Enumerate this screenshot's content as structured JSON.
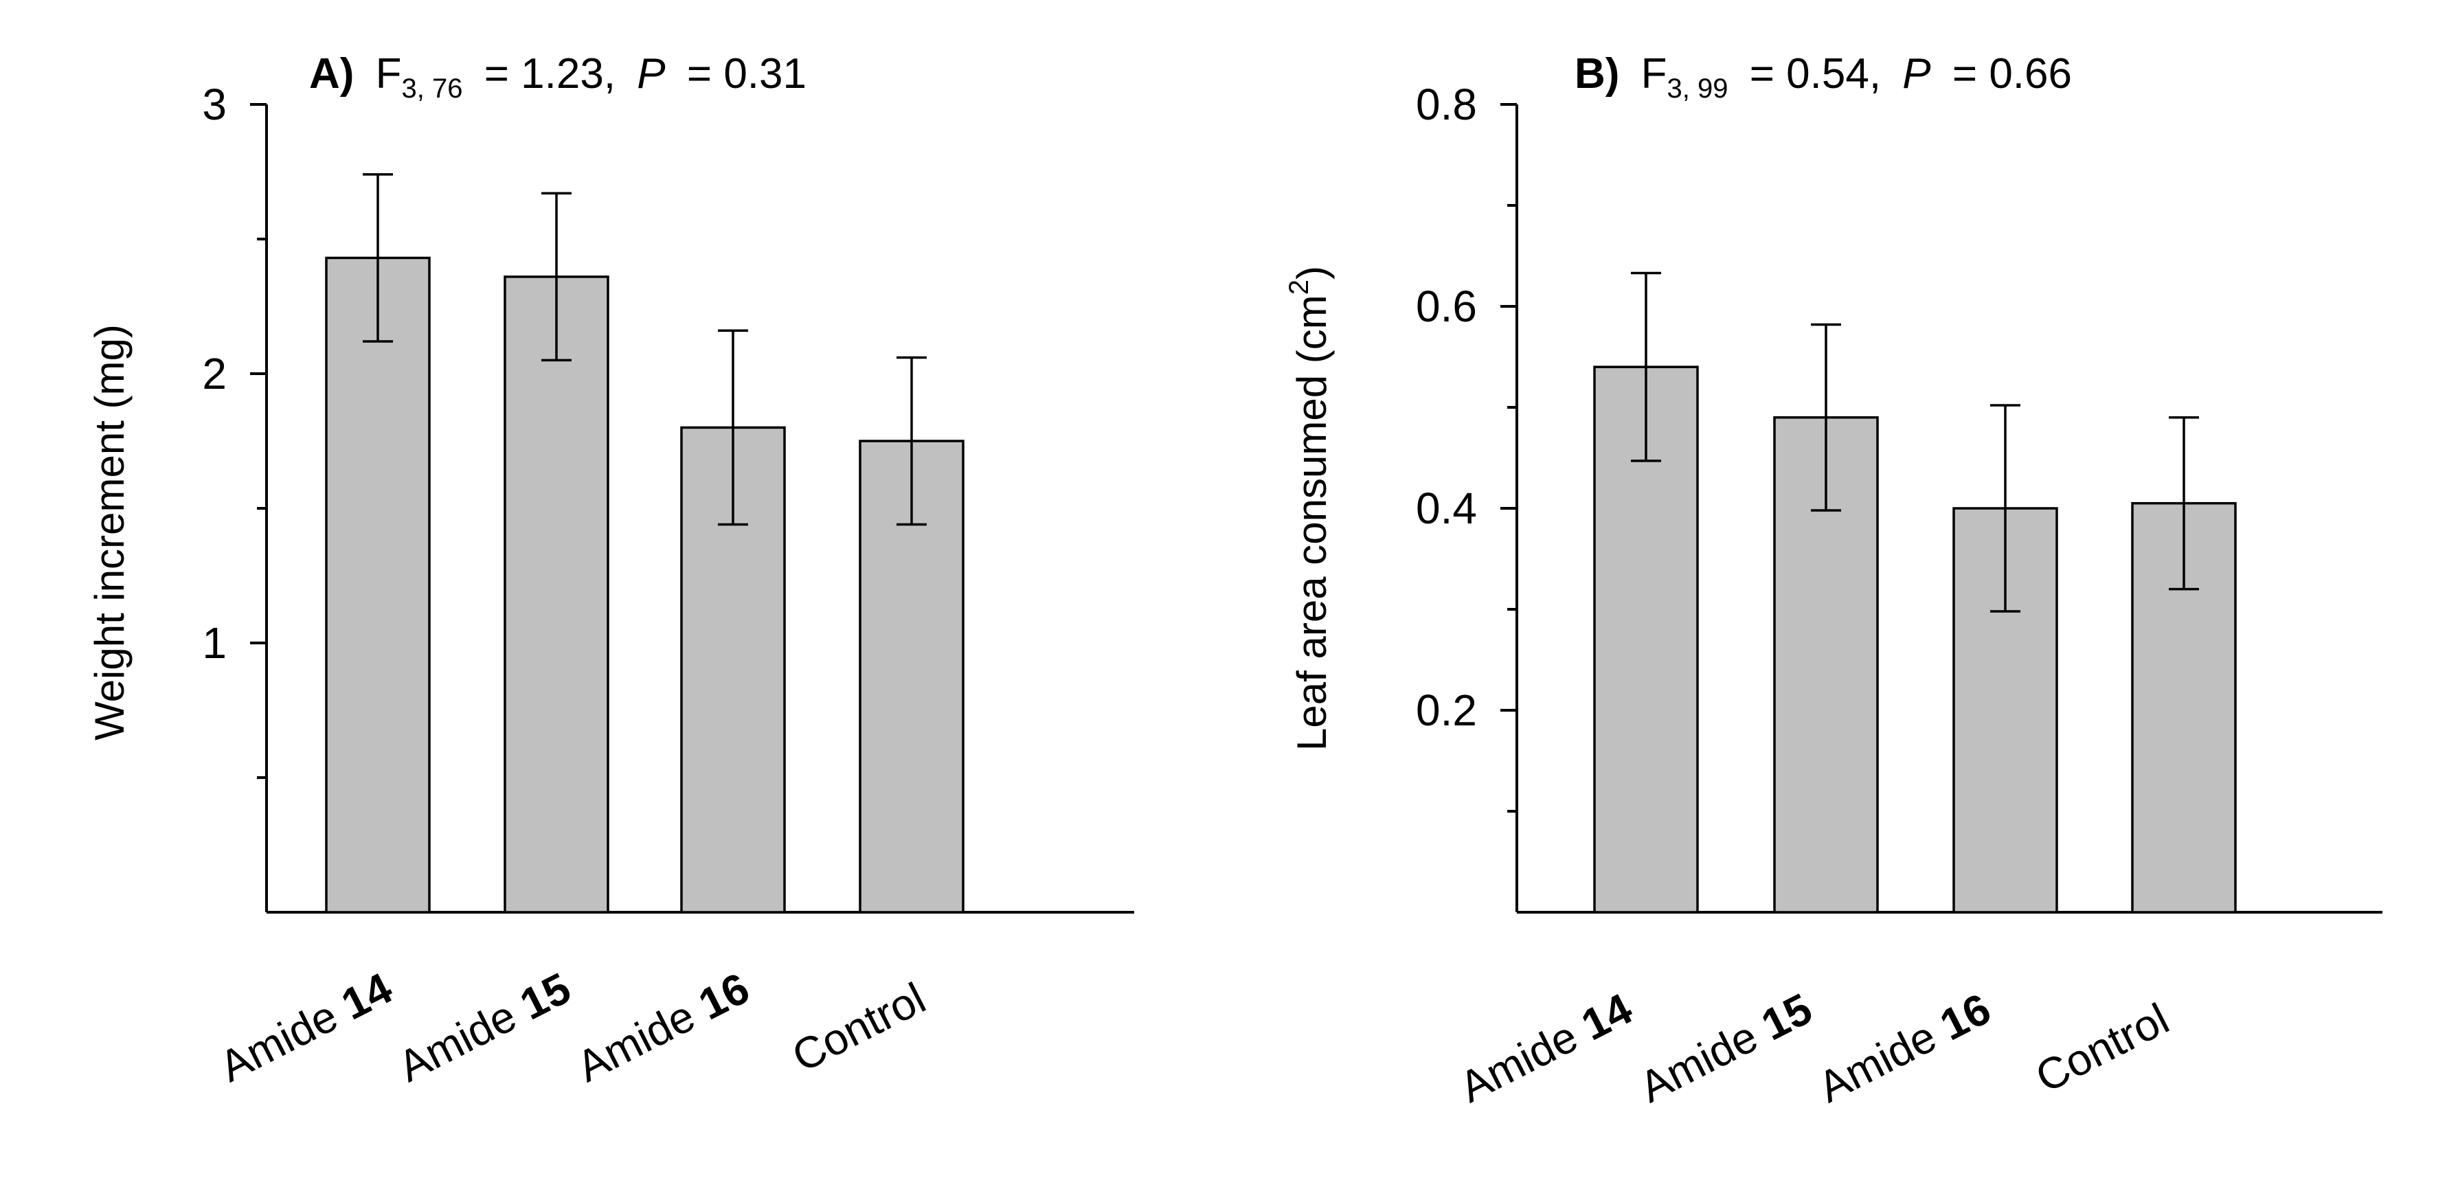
{
  "chart_data": [
    {
      "type": "bar",
      "panel": "A)",
      "title": "A) F3, 76 = 1.23, P = 0.31",
      "title_parts": {
        "label": "A)",
        "stat": "F",
        "df": "3, 76",
        "stat_value": "= 1.23,",
        "p_label": "P",
        "p_value": "= 0.31"
      },
      "categories": [
        {
          "prefix": "Amide",
          "bold": "14"
        },
        {
          "prefix": "Amide",
          "bold": "15"
        },
        {
          "prefix": "Amide",
          "bold": "16"
        },
        {
          "prefix": "Control",
          "bold": ""
        }
      ],
      "values": [
        2.43,
        2.36,
        1.8,
        1.75
      ],
      "errors": [
        0.31,
        0.31,
        0.36,
        0.31
      ],
      "ylabel": "Weight increment (mg)",
      "ylim": [
        0,
        3
      ],
      "yticks_major": [
        1,
        2,
        3
      ],
      "ytick_labels": [
        "1",
        "2",
        "3"
      ],
      "yticks_minor": [
        0.5,
        1.5,
        2.5
      ],
      "bar_color": "#c0c0c0"
    },
    {
      "type": "bar",
      "panel": "B)",
      "title": "B) F3, 99 = 0.54, P = 0.66",
      "title_parts": {
        "label": "B)",
        "stat": "F",
        "df": "3, 99",
        "stat_value": "= 0.54,",
        "p_label": "P",
        "p_value": "= 0.66"
      },
      "categories": [
        {
          "prefix": "Amide",
          "bold": "14"
        },
        {
          "prefix": "Amide",
          "bold": "15"
        },
        {
          "prefix": "Amide",
          "bold": "16"
        },
        {
          "prefix": "Control",
          "bold": ""
        }
      ],
      "values": [
        0.54,
        0.49,
        0.4,
        0.405
      ],
      "errors": [
        0.093,
        0.092,
        0.102,
        0.085
      ],
      "ylabel": "Leaf area consumed (cm2)",
      "ylabel_parts": {
        "main": "Leaf area consumed (cm",
        "sup": "2",
        "end": ")"
      },
      "ylim": [
        0,
        0.8
      ],
      "yticks_major": [
        0.2,
        0.4,
        0.6,
        0.8
      ],
      "ytick_labels": [
        "0.2",
        "0.4",
        "0.6",
        "0.8"
      ],
      "yticks_minor": [
        0.1,
        0.3,
        0.5,
        0.7
      ],
      "bar_color": "#c0c0c0"
    }
  ]
}
